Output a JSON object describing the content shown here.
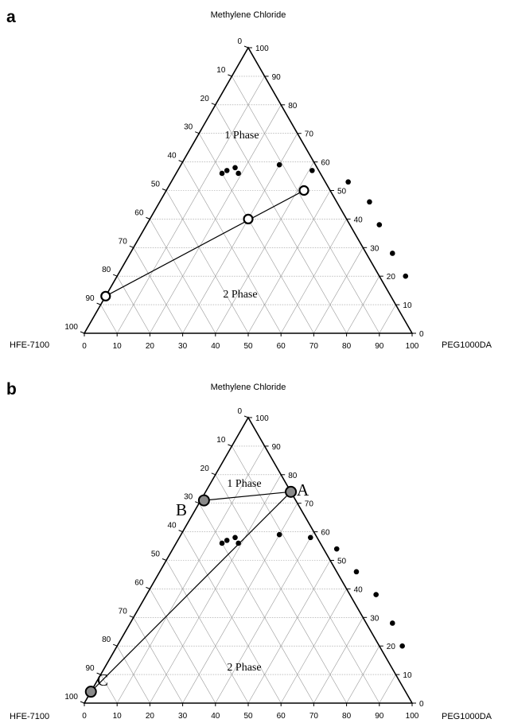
{
  "chart_data": [
    {
      "panel": "a",
      "type": "scatter",
      "subtype": "ternary",
      "apex_title": "Methylene Chloride",
      "left_corner_label": "HFE-7100",
      "right_corner_label": "PEG1000DA",
      "ticks": [
        0,
        10,
        20,
        30,
        40,
        50,
        60,
        70,
        80,
        90,
        100
      ],
      "phase_labels": [
        "1 Phase",
        "2 Phase"
      ],
      "axes": {
        "bottom": "PEG1000DA, 0 to 100 left to right",
        "right": "Methylene Chloride, 0 to 100 bottom to top",
        "left": "HFE-7100, 0 to 100 top to bottom"
      },
      "series": [
        {
          "marker": "filled-circle",
          "points": [
            {
              "peg": 14,
              "dcm": 56
            },
            {
              "peg": 15,
              "dcm": 57
            },
            {
              "peg": 17,
              "dcm": 58
            },
            {
              "peg": 19,
              "dcm": 56
            },
            {
              "peg": 30,
              "dcm": 59
            },
            {
              "peg": 41,
              "dcm": 57
            },
            {
              "peg": 54,
              "dcm": 53
            },
            {
              "peg": 64,
              "dcm": 46
            },
            {
              "peg": 71,
              "dcm": 38
            },
            {
              "peg": 80,
              "dcm": 28
            },
            {
              "peg": 88,
              "dcm": 20
            }
          ]
        },
        {
          "marker": "open-circle",
          "points": [
            {
              "peg": 0,
              "dcm": 13
            },
            {
              "peg": 30,
              "dcm": 40
            },
            {
              "peg": 42,
              "dcm": 50
            }
          ]
        }
      ],
      "tie_line": {
        "from": {
          "peg": 0,
          "dcm": 13
        },
        "to": {
          "peg": 42,
          "dcm": 50
        }
      }
    },
    {
      "panel": "b",
      "type": "scatter",
      "subtype": "ternary",
      "apex_title": "Methylene Chloride",
      "left_corner_label": "HFE-7100",
      "right_corner_label": "PEG1000DA",
      "ticks": [
        0,
        10,
        20,
        30,
        40,
        50,
        60,
        70,
        80,
        90,
        100
      ],
      "phase_labels": [
        "1 Phase",
        "2 Phase"
      ],
      "axes": {
        "bottom": "PEG1000DA, 0 to 100 left to right",
        "right": "Methylene Chloride, 0 to 100 bottom to top",
        "left": "HFE-7100, 0 to 100 top to bottom"
      },
      "series": [
        {
          "marker": "filled-circle",
          "points": [
            {
              "peg": 14,
              "dcm": 56
            },
            {
              "peg": 15,
              "dcm": 57
            },
            {
              "peg": 17,
              "dcm": 58
            },
            {
              "peg": 19,
              "dcm": 56
            },
            {
              "peg": 30,
              "dcm": 59
            },
            {
              "peg": 40,
              "dcm": 58
            },
            {
              "peg": 50,
              "dcm": 54
            },
            {
              "peg": 60,
              "dcm": 46
            },
            {
              "peg": 70,
              "dcm": 38
            },
            {
              "peg": 80,
              "dcm": 28
            },
            {
              "peg": 87,
              "dcm": 20
            }
          ]
        },
        {
          "marker": "shaded-circle",
          "points": [
            {
              "label": "A",
              "peg": 26,
              "dcm": 74
            },
            {
              "label": "B",
              "peg": 1,
              "dcm": 71
            },
            {
              "label": "C",
              "peg": 0,
              "dcm": 4
            }
          ]
        }
      ],
      "tie_lines": [
        {
          "from": "B",
          "to": "A"
        },
        {
          "from": "A",
          "to": "C"
        }
      ]
    }
  ]
}
